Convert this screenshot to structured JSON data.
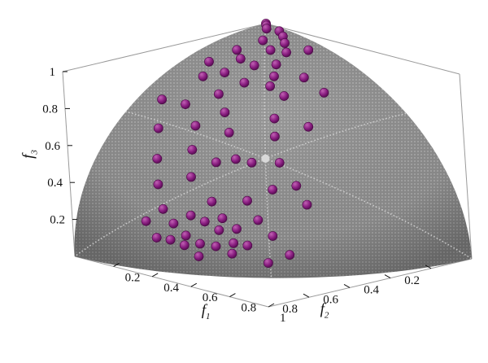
{
  "chart_data": {
    "type": "scatter",
    "title": "",
    "axes": {
      "f1": {
        "label": "f",
        "subscript": "1",
        "ticks": [
          "0.2",
          "0.4",
          "0.6",
          "0.8",
          "1"
        ]
      },
      "f2": {
        "label": "f",
        "subscript": "2",
        "ticks": [
          "0.2",
          "0.4",
          "0.6",
          "0.8"
        ]
      },
      "f3": {
        "label": "f",
        "subscript": "3",
        "ticks": [
          "0.2",
          "0.4",
          "0.6",
          "0.8",
          "1"
        ]
      }
    },
    "surface": {
      "shape": "sphere-octant",
      "color": "#8a8a8a"
    },
    "points_color": "#8b1f82",
    "points": [
      [
        0.0,
        0.0,
        1.0
      ],
      [
        0.02,
        0.018,
        1.0
      ],
      [
        0.05,
        0.045,
        0.998
      ],
      [
        0.1,
        0.03,
        0.994
      ],
      [
        0.15,
        0.06,
        0.987
      ],
      [
        0.13,
        0.14,
        0.981
      ],
      [
        0.2,
        0.1,
        0.975
      ],
      [
        0.21,
        0.18,
        0.961
      ],
      [
        0.26,
        0.15,
        0.954
      ],
      [
        0.29,
        0.07,
        0.954
      ],
      [
        0.12,
        0.26,
        0.958
      ],
      [
        0.18,
        0.3,
        0.937
      ],
      [
        0.3,
        0.24,
        0.923
      ],
      [
        0.25,
        0.3,
        0.92
      ],
      [
        0.1,
        0.38,
        0.92
      ],
      [
        0.35,
        0.3,
        0.888
      ],
      [
        0.2,
        0.4,
        0.894
      ],
      [
        0.3,
        0.4,
        0.866
      ],
      [
        0.15,
        0.46,
        0.875
      ],
      [
        0.42,
        0.22,
        0.88
      ],
      [
        0.38,
        0.35,
        0.856
      ],
      [
        0.27,
        0.5,
        0.822
      ],
      [
        0.45,
        0.35,
        0.822
      ],
      [
        0.52,
        0.22,
        0.825
      ],
      [
        0.35,
        0.55,
        0.758
      ],
      [
        0.2,
        0.6,
        0.774
      ],
      [
        0.1,
        0.62,
        0.778
      ],
      [
        0.5,
        0.45,
        0.74
      ],
      [
        0.42,
        0.6,
        0.681
      ],
      [
        0.3,
        0.65,
        0.698
      ],
      [
        0.55,
        0.5,
        0.669
      ],
      [
        0.6,
        0.38,
        0.704
      ],
      [
        0.18,
        0.72,
        0.67
      ],
      [
        0.35,
        0.72,
        0.6
      ],
      [
        0.5,
        0.65,
        0.572
      ],
      [
        0.45,
        0.7,
        0.554
      ],
      [
        0.62,
        0.55,
        0.559
      ],
      [
        0.55,
        0.62,
        0.559
      ],
      [
        0.25,
        0.8,
        0.545
      ],
      [
        0.4,
        0.78,
        0.482
      ],
      [
        0.65,
        0.62,
        0.44
      ],
      [
        0.7,
        0.55,
        0.456
      ],
      [
        0.3,
        0.85,
        0.433
      ],
      [
        0.5,
        0.78,
        0.376
      ],
      [
        0.6,
        0.7,
        0.387
      ],
      [
        0.75,
        0.55,
        0.367
      ],
      [
        0.35,
        0.88,
        0.321
      ],
      [
        0.45,
        0.84,
        0.303
      ],
      [
        0.55,
        0.78,
        0.299
      ],
      [
        0.65,
        0.7,
        0.296
      ],
      [
        0.4,
        0.88,
        0.256
      ],
      [
        0.5,
        0.82,
        0.278
      ],
      [
        0.75,
        0.65,
        0.122
      ],
      [
        0.3,
        0.92,
        0.252
      ],
      [
        0.6,
        0.76,
        0.25
      ],
      [
        0.45,
        0.87,
        0.202
      ],
      [
        0.55,
        0.8,
        0.24
      ],
      [
        0.7,
        0.68,
        0.218
      ],
      [
        0.4,
        0.9,
        0.173
      ],
      [
        0.5,
        0.85,
        0.166
      ],
      [
        0.6,
        0.78,
        0.178
      ],
      [
        0.35,
        0.92,
        0.176
      ],
      [
        0.45,
        0.88,
        0.152
      ],
      [
        0.55,
        0.82,
        0.158
      ],
      [
        0.64,
        0.75,
        0.169
      ],
      [
        0.7,
        0.71,
        0.08
      ],
      [
        0.5,
        0.86,
        0.1
      ],
      [
        0.6,
        0.79,
        0.124
      ]
    ]
  }
}
